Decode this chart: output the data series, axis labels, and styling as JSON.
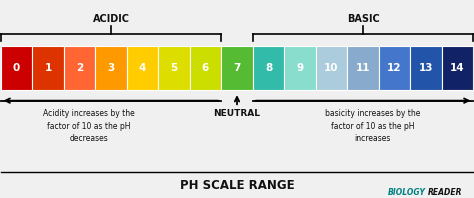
{
  "ph_values": [
    0,
    1,
    2,
    3,
    4,
    5,
    6,
    7,
    8,
    9,
    10,
    11,
    12,
    13,
    14
  ],
  "colors": [
    "#CC0000",
    "#DD3300",
    "#FF6633",
    "#FF9900",
    "#FFCC00",
    "#DDDD00",
    "#CCDD00",
    "#55BB33",
    "#33BBAA",
    "#88DDCC",
    "#AACCDD",
    "#88AACC",
    "#4477CC",
    "#2255AA",
    "#112266"
  ],
  "background_color": "#f0f0f0",
  "title": "PH SCALE RANGE",
  "acidic_label": "ACIDIC",
  "basic_label": "BASIC",
  "neutral_label": "NEUTRAL",
  "acidity_text": "Acidity increases by the\nfactor of 10 as the pH\ndecreases",
  "basicity_text": "basicity increases by the\nfactor of 10 as the pH\nincreases",
  "biology_word1": "BIOLOGY",
  "biology_word2": "READER",
  "text_color_dark": "#111111",
  "text_color_teal": "#008080",
  "text_color_green": "#2e8b2e"
}
